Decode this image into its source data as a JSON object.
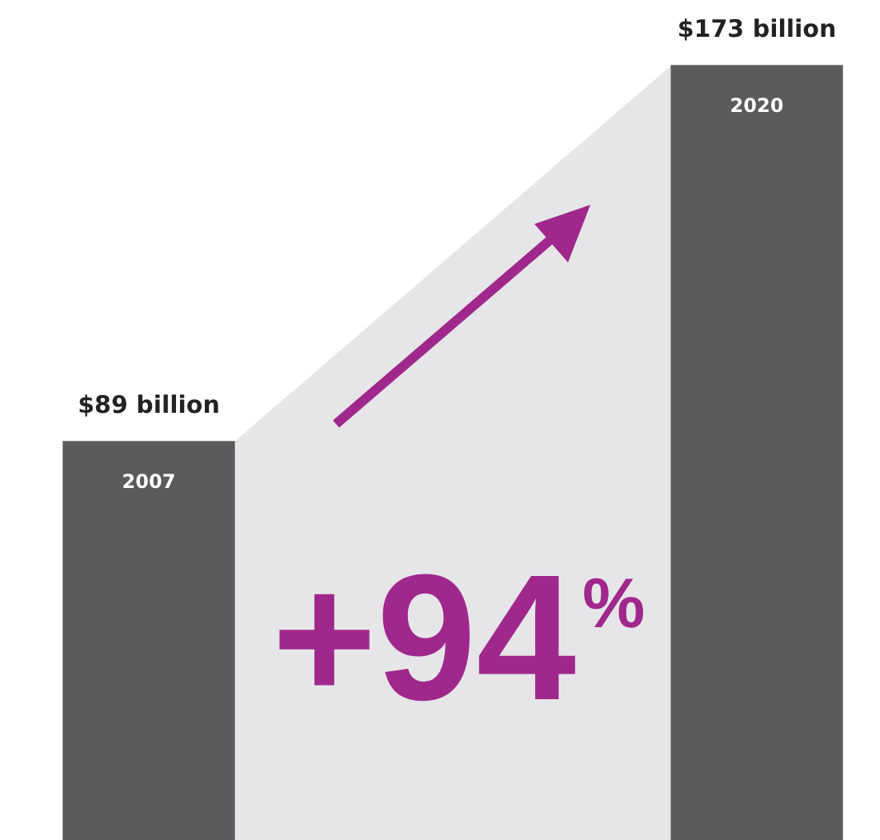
{
  "chart_data": {
    "type": "bar",
    "categories": [
      "2007",
      "2020"
    ],
    "values": [
      89,
      173
    ],
    "value_labels": [
      "$89 billion",
      "$173 billion"
    ],
    "color": "#5b5b5e",
    "ylim": [
      0,
      173
    ],
    "tick_labels": false,
    "annotations": [
      "+94$^{%}$"
    ]
  }
}
